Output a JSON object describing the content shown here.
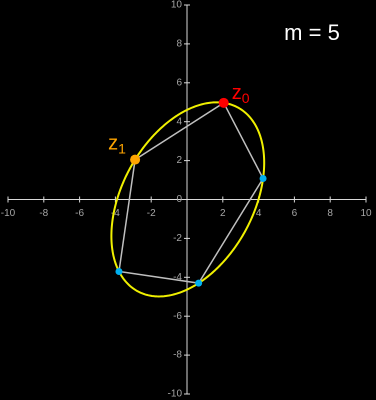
{
  "chart_data": {
    "type": "scatter",
    "annotation": "m = 5",
    "xlim": [
      -10,
      10
    ],
    "ylim": [
      -10,
      10
    ],
    "xticks": [
      -10,
      -8,
      -6,
      -4,
      -2,
      2,
      4,
      6,
      8,
      10
    ],
    "yticks": [
      -10,
      -8,
      -6,
      -4,
      -2,
      0,
      2,
      4,
      6,
      8,
      10
    ],
    "curve_color": "#f0f000",
    "polygon_color": "#bfbfbf",
    "points": [
      {
        "label": "z",
        "index": "0",
        "color": "#ff0000",
        "x": 2.05,
        "y": 4.97
      },
      {
        "color": "#00b0f0",
        "x": 4.25,
        "y": 1.08
      },
      {
        "color": "#00b0f0",
        "x": 0.65,
        "y": -4.3
      },
      {
        "color": "#00b0f0",
        "x": -3.8,
        "y": -3.7
      },
      {
        "label": "z",
        "index": "1",
        "color": "#ffa500",
        "x": -2.9,
        "y": 2.05
      }
    ]
  }
}
